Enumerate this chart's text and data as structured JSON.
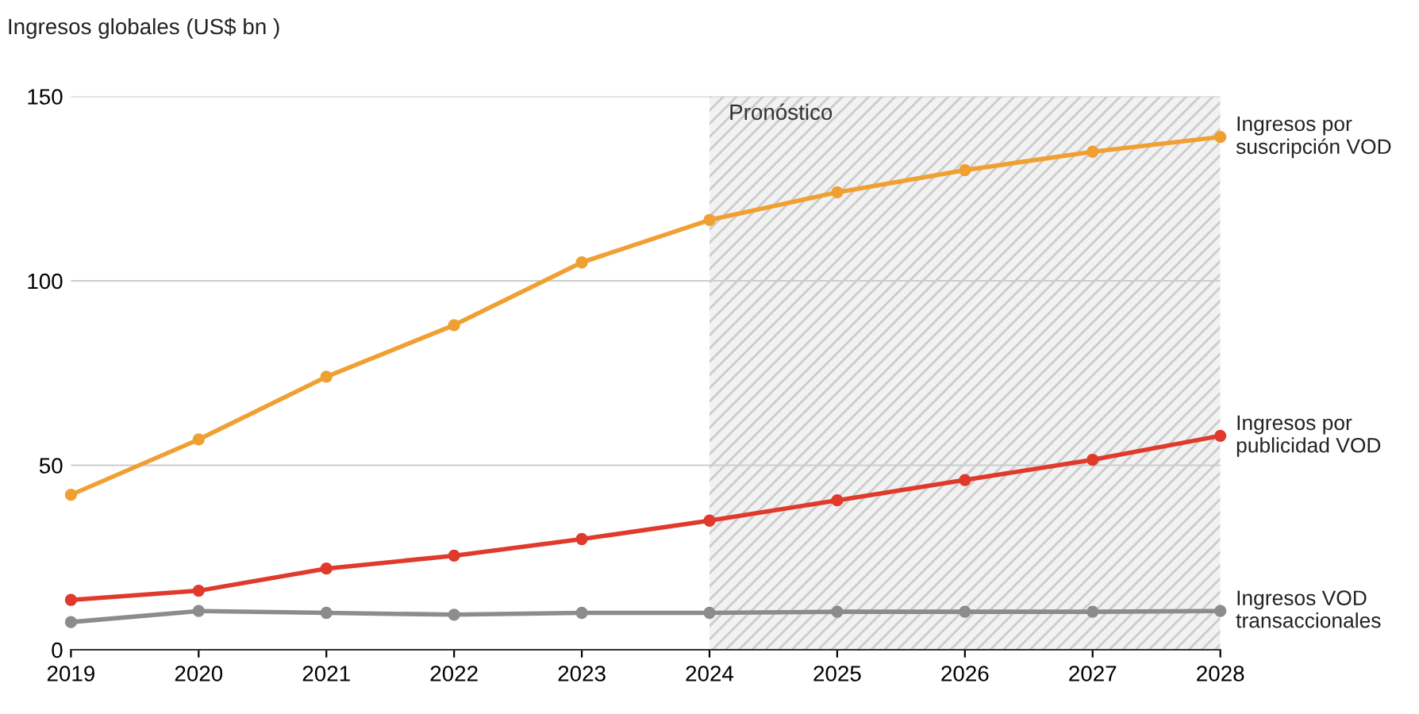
{
  "chart_data": {
    "type": "line",
    "ylabel": "Ingresos globales (US$ bn )",
    "x": [
      2019,
      2020,
      2021,
      2022,
      2023,
      2024,
      2025,
      2026,
      2027,
      2028
    ],
    "series": [
      {
        "name": "Ingresos por\nsuscripción VOD",
        "color": "#f0a033",
        "values": [
          42,
          57,
          74,
          88,
          105,
          116.5,
          124,
          130,
          135,
          139
        ]
      },
      {
        "name": "Ingresos por\npublicidad VOD",
        "color": "#e03a2c",
        "values": [
          13.5,
          16,
          22,
          25.5,
          30,
          35,
          40.5,
          46,
          51.5,
          58
        ]
      },
      {
        "name": "Ingresos VOD\ntransaccionales",
        "color": "#8c8c8c",
        "values": [
          7.5,
          10.5,
          10,
          9.5,
          10,
          10,
          10.3,
          10.3,
          10.3,
          10.5
        ]
      }
    ],
    "xlim": [
      2019,
      2028
    ],
    "xticks": [
      2019,
      2020,
      2021,
      2022,
      2023,
      2024,
      2025,
      2026,
      2027,
      2028
    ],
    "ylim": [
      0,
      150
    ],
    "yticks": [
      0,
      50,
      100,
      150
    ],
    "bands": [
      {
        "axis": "x",
        "from": 2024,
        "to": 2028,
        "label": "Pronóstico",
        "color": "#f2f2f2"
      }
    ],
    "grid": "y",
    "legend": false,
    "marker": "circle",
    "line_style": "solid"
  }
}
